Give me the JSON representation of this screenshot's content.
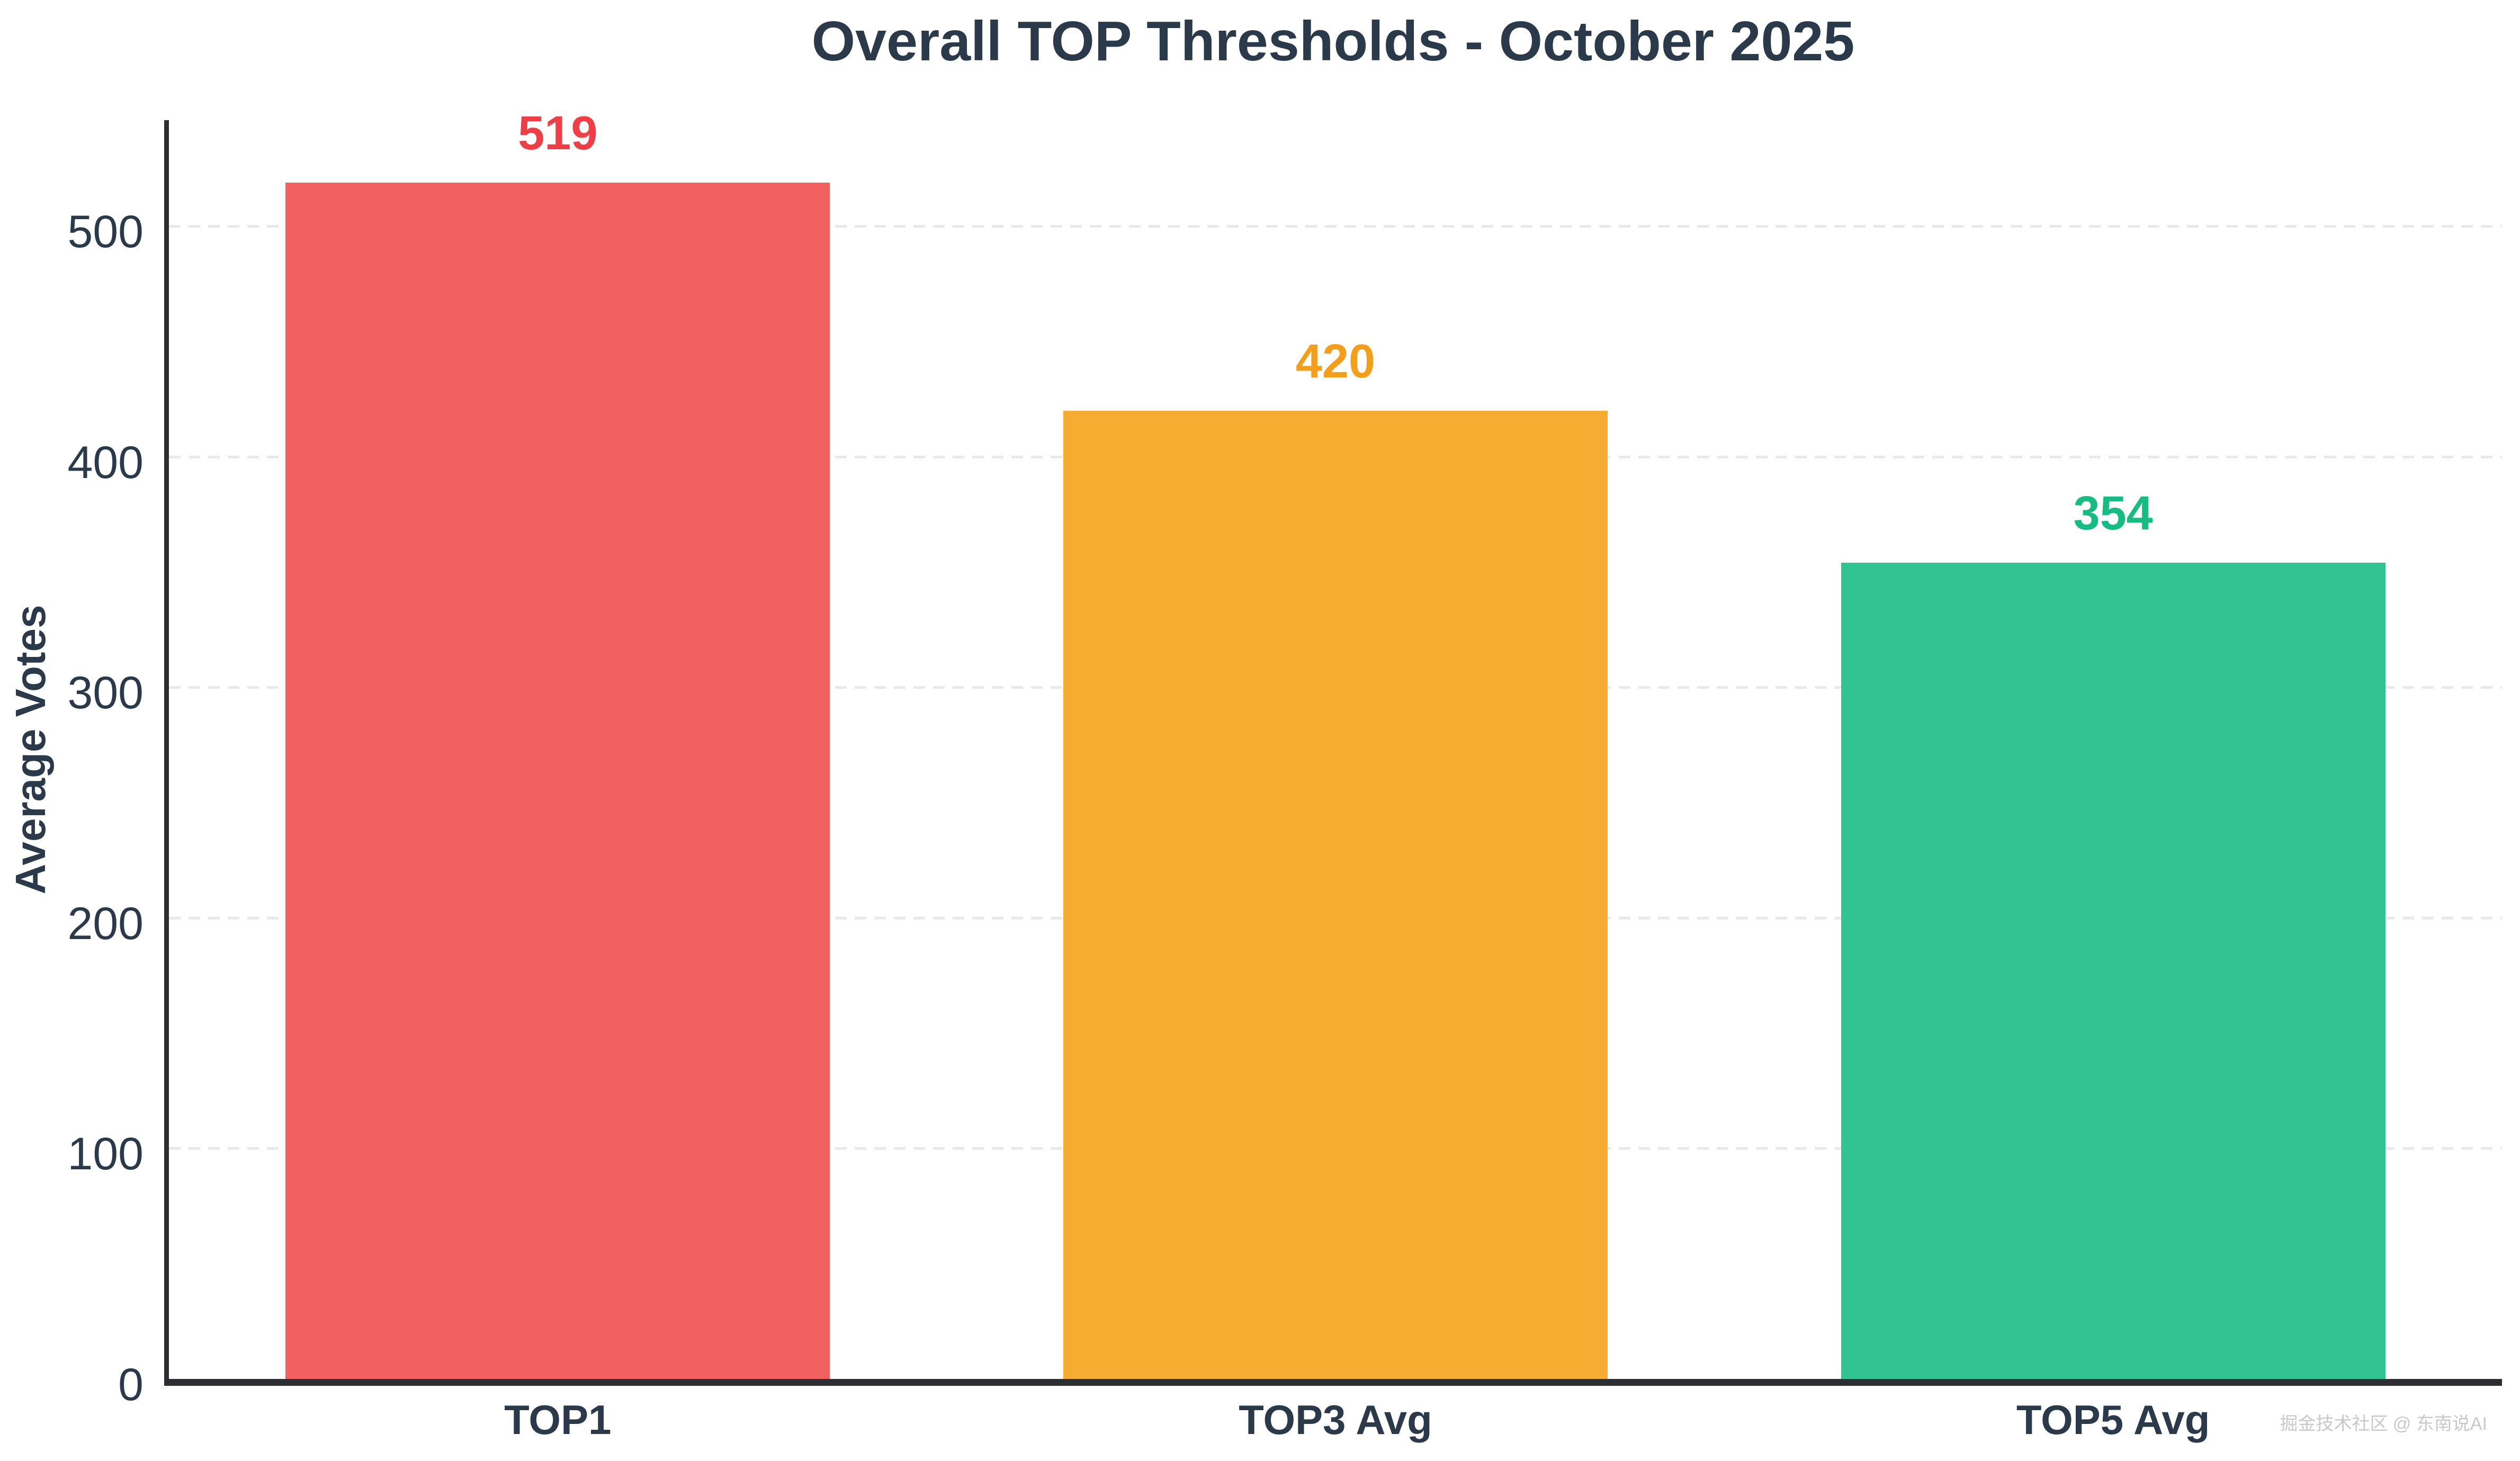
{
  "page": {
    "background_color": "#ffffff"
  },
  "chart_data": {
    "type": "bar",
    "title": "Overall TOP Thresholds - October 2025",
    "xlabel": "",
    "ylabel": "Average Votes",
    "categories": [
      "TOP1",
      "TOP3 Avg",
      "TOP5 Avg"
    ],
    "values": [
      519,
      420,
      354
    ],
    "series": [
      {
        "name": "TOP1",
        "value": 519,
        "bar_color": "#f2605f",
        "label_color": "#ee3e46"
      },
      {
        "name": "TOP3 Avg",
        "value": 420,
        "bar_color": "#f6ac31",
        "label_color": "#f49f1c"
      },
      {
        "name": "TOP5 Avg",
        "value": 354,
        "bar_color": "#32c392",
        "label_color": "#17bc82"
      }
    ],
    "ylim": [
      0,
      546
    ],
    "yticks": [
      0,
      100,
      200,
      300,
      400,
      500
    ],
    "grid": "horizontal dashed",
    "legend_position": "none",
    "text_color": "#2b3a4a",
    "axis_color": "#2b2e33",
    "grid_color": "#e9e9e9",
    "bar_width_fraction": 0.7
  },
  "watermark": {
    "text": "掘金技术社区 @ 东南说AI",
    "color": "#c9c9c9"
  }
}
